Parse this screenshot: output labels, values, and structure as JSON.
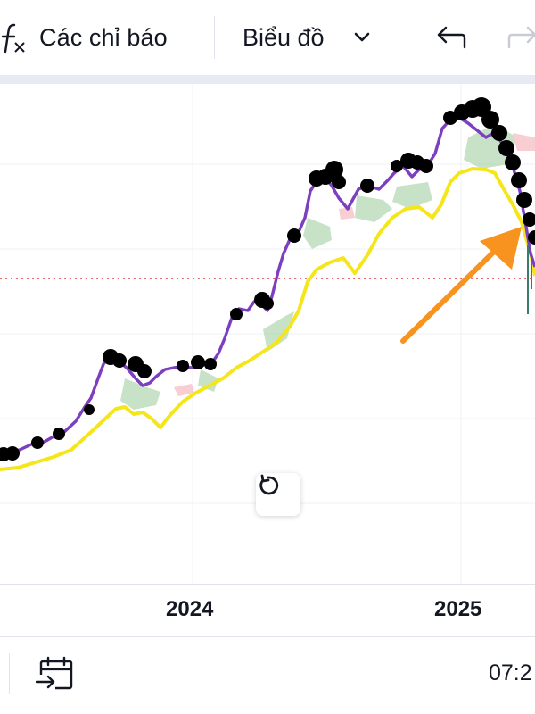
{
  "toolbar": {
    "indicators_label": "Các chỉ báo",
    "chart_type_label": "Biểu đồ",
    "icons": [
      "fx-icon",
      "chevron-down-icon",
      "undo-icon",
      "redo-icon"
    ]
  },
  "time_axis": {
    "labels": [
      "2024",
      "2025"
    ]
  },
  "bottom_bar": {
    "clock_text": "07:2",
    "icons": [
      "goto-date-icon"
    ]
  },
  "chart": {
    "price_line_color": "#e03b3b",
    "annotation_arrow_color": "#f7931e",
    "cloud_colors": [
      "#9ccc9c",
      "#f4a7b0"
    ],
    "line_colors": [
      "#7b3fbf",
      "#f5e61b",
      "#000000"
    ]
  }
}
